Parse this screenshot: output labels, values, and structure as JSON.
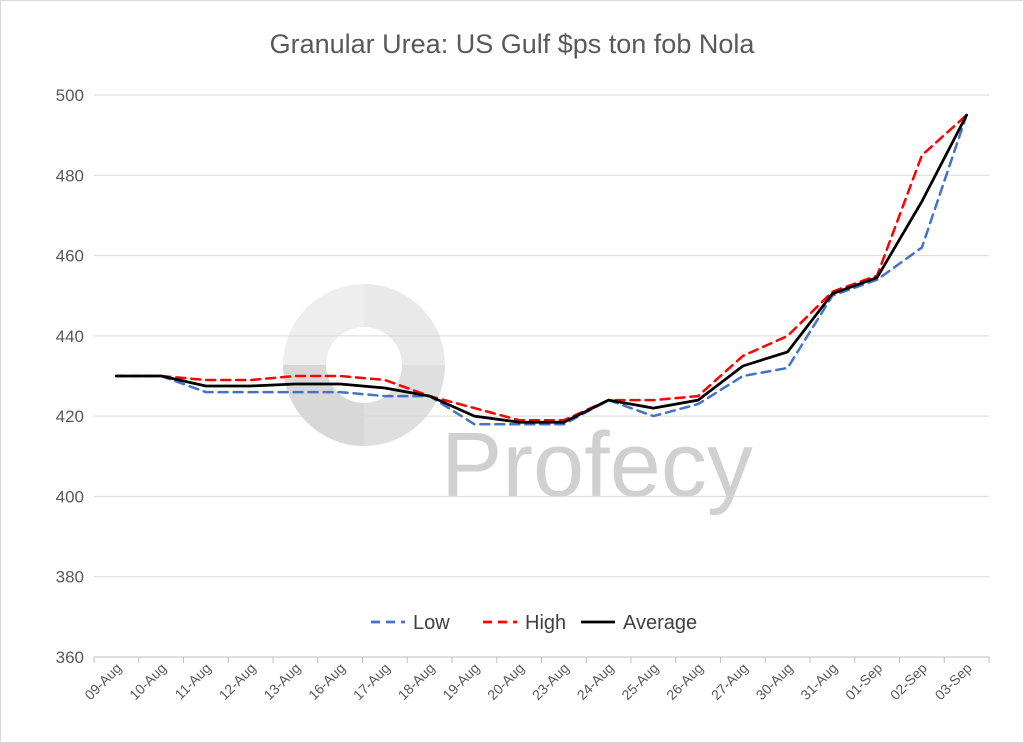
{
  "chart_data": {
    "type": "line",
    "title": "Granular Urea: US Gulf $ps ton fob Nola",
    "xlabel": "",
    "ylabel": "",
    "ylim": [
      360,
      500
    ],
    "yticks": [
      360,
      380,
      400,
      420,
      440,
      460,
      480,
      500
    ],
    "grid": "horizontal",
    "legend_position": "bottom-inside",
    "categories": [
      "09-Aug",
      "10-Aug",
      "11-Aug",
      "12-Aug",
      "13-Aug",
      "16-Aug",
      "17-Aug",
      "18-Aug",
      "19-Aug",
      "20-Aug",
      "23-Aug",
      "24-Aug",
      "25-Aug",
      "26-Aug",
      "27-Aug",
      "30-Aug",
      "31-Aug",
      "01-Sep",
      "02-Sep",
      "03-Sep"
    ],
    "series": [
      {
        "name": "Low",
        "color": "#4472c4",
        "dash": "dashed",
        "values": [
          430,
          430,
          426,
          426,
          426,
          426,
          425,
          425,
          418,
          418,
          418,
          424,
          420,
          423,
          430,
          432,
          450,
          454,
          462,
          495
        ]
      },
      {
        "name": "High",
        "color": "#ff0000",
        "dash": "dashed",
        "values": [
          430,
          430,
          429,
          429,
          430,
          430,
          429,
          425,
          422,
          419,
          419,
          424,
          424,
          425,
          435,
          440,
          451,
          455,
          485,
          495
        ]
      },
      {
        "name": "Average",
        "color": "#000000",
        "dash": "solid",
        "values": [
          430,
          430,
          427.5,
          427.5,
          428,
          428,
          427,
          425,
          420,
          418.5,
          418.5,
          424,
          422,
          424,
          432.5,
          436,
          450.5,
          454.5,
          473.5,
          495
        ]
      }
    ]
  },
  "watermark": {
    "text": "Profecy",
    "icon": "profercy-logo-icon"
  }
}
